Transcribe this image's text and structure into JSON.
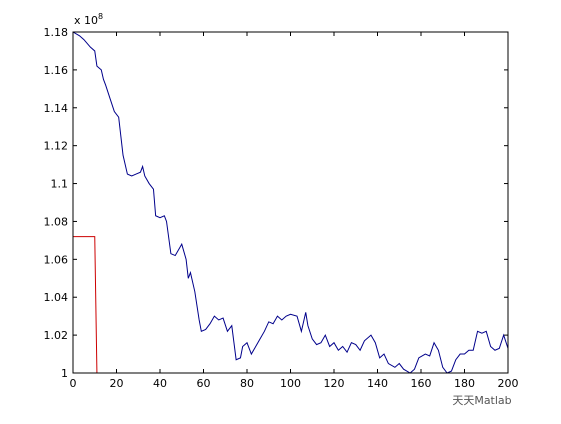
{
  "chart_data": {
    "type": "line",
    "y_multiplier": {
      "base": "x 10",
      "power": "8"
    },
    "watermark": "天天Matlab",
    "xlim": [
      0,
      200
    ],
    "xticks": [
      0,
      20,
      40,
      60,
      80,
      100,
      120,
      140,
      160,
      180,
      200
    ],
    "ylim": [
      1,
      1.18
    ],
    "yticks": [
      1,
      1.02,
      1.04,
      1.06,
      1.08,
      1.1,
      1.12,
      1.14,
      1.16,
      1.18
    ],
    "grid": false,
    "series": [
      {
        "color": "#00008b",
        "x": [
          0,
          3,
          5,
          8,
          10,
          11,
          13,
          14,
          15,
          17,
          19,
          21,
          22,
          23,
          25,
          27,
          29,
          31,
          32,
          33,
          35,
          37,
          38,
          40,
          42,
          43,
          45,
          47,
          49,
          50,
          52,
          53,
          54,
          56,
          58,
          59,
          61,
          63,
          65,
          67,
          69,
          71,
          73,
          74,
          75,
          77,
          78,
          80,
          82,
          84,
          86,
          88,
          90,
          92,
          94,
          96,
          98,
          100,
          103,
          105,
          107,
          108,
          110,
          112,
          114,
          116,
          118,
          120,
          122,
          124,
          126,
          128,
          130,
          132,
          134,
          137,
          139,
          141,
          143,
          145,
          148,
          150,
          152,
          155,
          157,
          159,
          162,
          164,
          166,
          168,
          170,
          172,
          174,
          176,
          178,
          180,
          182,
          184,
          186,
          188,
          190,
          192,
          194,
          196,
          198,
          200
        ],
        "values": [
          1.18,
          1.178,
          1.176,
          1.172,
          1.17,
          1.162,
          1.16,
          1.155,
          1.152,
          1.145,
          1.138,
          1.135,
          1.125,
          1.115,
          1.105,
          1.104,
          1.105,
          1.106,
          1.109,
          1.104,
          1.1,
          1.097,
          1.083,
          1.082,
          1.083,
          1.08,
          1.063,
          1.062,
          1.066,
          1.068,
          1.06,
          1.05,
          1.053,
          1.043,
          1.028,
          1.022,
          1.023,
          1.026,
          1.03,
          1.028,
          1.029,
          1.022,
          1.025,
          1.016,
          1.007,
          1.008,
          1.014,
          1.016,
          1.01,
          1.014,
          1.018,
          1.022,
          1.027,
          1.026,
          1.03,
          1.028,
          1.03,
          1.031,
          1.03,
          1.022,
          1.032,
          1.025,
          1.018,
          1.015,
          1.016,
          1.02,
          1.014,
          1.016,
          1.012,
          1.014,
          1.011,
          1.016,
          1.015,
          1.012,
          1.017,
          1.02,
          1.016,
          1.008,
          1.01,
          1.005,
          1.003,
          1.005,
          1.002,
          1.0,
          1.002,
          1.008,
          1.01,
          1.009,
          1.016,
          1.012,
          1.003,
          1.0,
          1.001,
          1.007,
          1.01,
          1.01,
          1.012,
          1.012,
          1.022,
          1.021,
          1.022,
          1.014,
          1.012,
          1.013,
          1.02,
          1.013
        ]
      },
      {
        "color": "#cc0000",
        "x": [
          0,
          10,
          11,
          200
        ],
        "values": [
          1.072,
          1.072,
          1.0,
          1.0
        ]
      }
    ]
  }
}
